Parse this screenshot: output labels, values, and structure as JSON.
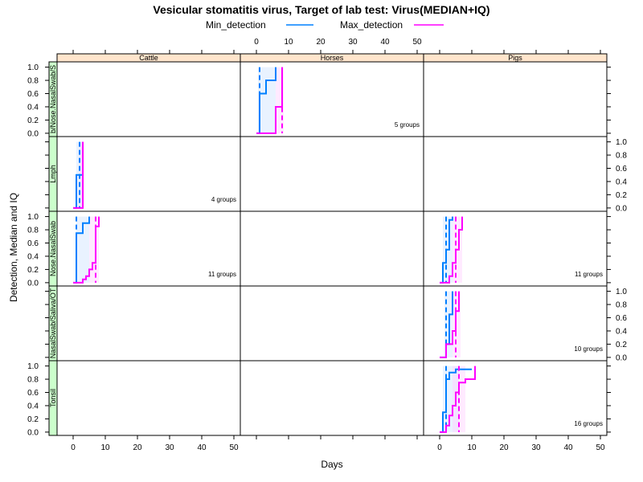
{
  "chart_data": {
    "type": "line",
    "title": "Vesicular stomatitis virus, Target of lab test: Virus(MEDIAN+IQ)",
    "xlabel": "Days",
    "ylabel": "Detection, Median and IQ",
    "xlim": [
      -5,
      52
    ],
    "ylim": [
      -0.05,
      1.08
    ],
    "x_ticks": [
      "0",
      "10",
      "20",
      "30",
      "40",
      "50"
    ],
    "y_ticks": [
      "0.0",
      "0.2",
      "0.4",
      "0.6",
      "0.8",
      "1.0"
    ],
    "legend": {
      "placement": "top",
      "items": [
        {
          "name": "Min_detection",
          "color": "#0080ff"
        },
        {
          "name": "Max_detection",
          "color": "#ff00ff"
        }
      ]
    },
    "columns": [
      "Cattle",
      "Horses",
      "Pigs"
    ],
    "rows": [
      "b/Nose.NasalSwab/S",
      "Lmph",
      "Nose.NasalSwab",
      "NasalSwab/Saliva/OT",
      "Tonsil"
    ],
    "panels": [
      {
        "row": 0,
        "col": 1,
        "count_label": "5 groups",
        "min_median": [
          [
            0,
            0
          ],
          [
            1,
            0
          ],
          [
            1,
            0.6
          ],
          [
            3,
            0.6
          ],
          [
            3,
            0.8
          ],
          [
            6,
            0.8
          ],
          [
            6,
            1.0
          ]
        ],
        "min_dashed_x": 1,
        "min_band": [
          0.5,
          6
        ],
        "max_median": [
          [
            0,
            0
          ],
          [
            6,
            0
          ],
          [
            6,
            0.4
          ],
          [
            8,
            0.4
          ],
          [
            8,
            1.0
          ]
        ],
        "max_dashed_x": 8,
        "max_band": [
          6,
          8.5
        ]
      },
      {
        "row": 1,
        "col": 0,
        "count_label": "4 groups",
        "min_median": [
          [
            0,
            0
          ],
          [
            1,
            0
          ],
          [
            1,
            0.5
          ],
          [
            3,
            0.5
          ],
          [
            3,
            1.0
          ]
        ],
        "min_dashed_x": 2,
        "min_band": [
          1,
          3
        ],
        "max_median": [
          [
            0,
            0
          ],
          [
            3,
            0
          ],
          [
            3,
            1.0
          ]
        ],
        "max_dashed_x": 3,
        "max_band": [
          2,
          3.5
        ]
      },
      {
        "row": 2,
        "col": 0,
        "count_label": "11 groups",
        "min_median": [
          [
            0,
            0
          ],
          [
            1,
            0
          ],
          [
            1,
            0.75
          ],
          [
            3,
            0.75
          ],
          [
            3,
            0.9
          ],
          [
            5,
            0.9
          ],
          [
            5,
            1.0
          ]
        ],
        "min_dashed_x": 1,
        "min_band": [
          1,
          5
        ],
        "max_median": [
          [
            0,
            0
          ],
          [
            3,
            0
          ],
          [
            3,
            0.05
          ],
          [
            4,
            0.05
          ],
          [
            4,
            0.1
          ],
          [
            5,
            0.1
          ],
          [
            5,
            0.2
          ],
          [
            6,
            0.2
          ],
          [
            6,
            0.3
          ],
          [
            7,
            0.3
          ],
          [
            7,
            0.85
          ],
          [
            8,
            0.85
          ],
          [
            8,
            1.0
          ]
        ],
        "max_dashed_x": 7,
        "max_band": [
          5,
          8
        ]
      },
      {
        "row": 2,
        "col": 2,
        "count_label": "11 groups",
        "min_median": [
          [
            0,
            0
          ],
          [
            1,
            0
          ],
          [
            1,
            0.3
          ],
          [
            2,
            0.3
          ],
          [
            2,
            0.5
          ],
          [
            3,
            0.5
          ],
          [
            3,
            0.95
          ],
          [
            4,
            0.95
          ],
          [
            4,
            1.0
          ]
        ],
        "min_dashed_x": 2,
        "min_band": [
          1,
          4
        ],
        "max_median": [
          [
            0,
            0
          ],
          [
            3,
            0
          ],
          [
            3,
            0.1
          ],
          [
            4,
            0.1
          ],
          [
            4,
            0.3
          ],
          [
            5,
            0.3
          ],
          [
            5,
            0.5
          ],
          [
            6,
            0.5
          ],
          [
            6,
            0.8
          ],
          [
            7,
            0.8
          ],
          [
            7,
            1.0
          ]
        ],
        "max_dashed_x": 5,
        "max_band": [
          4,
          7
        ]
      },
      {
        "row": 3,
        "col": 2,
        "count_label": "10 groups",
        "min_median": [
          [
            0,
            0
          ],
          [
            2,
            0
          ],
          [
            2,
            0.2
          ],
          [
            3,
            0.2
          ],
          [
            3,
            0.65
          ],
          [
            4,
            0.65
          ],
          [
            4,
            1.0
          ]
        ],
        "min_dashed_x": 2,
        "min_band": [
          1.5,
          4
        ],
        "max_median": [
          [
            0,
            0
          ],
          [
            2,
            0
          ],
          [
            2,
            0.2
          ],
          [
            4,
            0.2
          ],
          [
            4,
            0.4
          ],
          [
            5,
            0.4
          ],
          [
            5,
            0.7
          ],
          [
            6,
            0.7
          ],
          [
            6,
            1.0
          ]
        ],
        "max_dashed_x": 5,
        "max_band": [
          4,
          6.5
        ]
      },
      {
        "row": 4,
        "col": 2,
        "count_label": "16 groups",
        "min_median": [
          [
            0,
            0
          ],
          [
            1,
            0
          ],
          [
            1,
            0.3
          ],
          [
            2,
            0.3
          ],
          [
            2,
            0.8
          ],
          [
            3,
            0.8
          ],
          [
            3,
            0.9
          ],
          [
            5,
            0.9
          ],
          [
            5,
            0.95
          ],
          [
            10,
            0.95
          ]
        ],
        "min_dashed_x": 2,
        "min_band": [
          1,
          6
        ],
        "max_median": [
          [
            0,
            0
          ],
          [
            2,
            0
          ],
          [
            2,
            0.1
          ],
          [
            3,
            0.1
          ],
          [
            3,
            0.25
          ],
          [
            4,
            0.25
          ],
          [
            4,
            0.4
          ],
          [
            5,
            0.4
          ],
          [
            5,
            0.6
          ],
          [
            6,
            0.6
          ],
          [
            6,
            0.75
          ],
          [
            8,
            0.75
          ],
          [
            8,
            0.8
          ],
          [
            11,
            0.8
          ],
          [
            11,
            1.0
          ]
        ],
        "max_dashed_x": 6,
        "max_band": [
          4,
          8
        ]
      }
    ]
  }
}
